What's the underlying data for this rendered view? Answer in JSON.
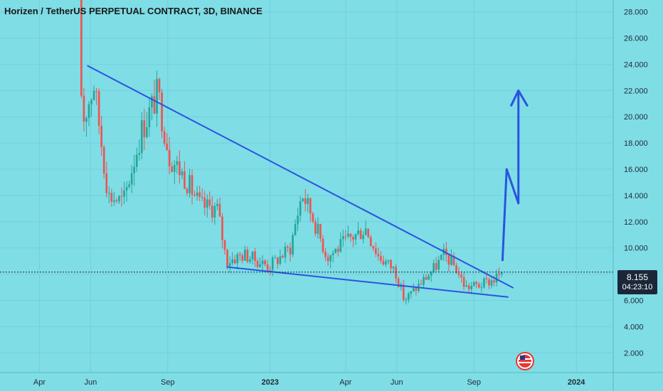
{
  "header": {
    "title": "Horizen / TetherUS PERPETUAL CONTRACT, 3D, BINANCE"
  },
  "price_tag": {
    "price": "8.155",
    "countdown": "04:23:10"
  },
  "chart_data": {
    "type": "candlestick",
    "ylim": [
      0.5,
      28.9
    ],
    "y_ticks": [
      "28.000",
      "26.000",
      "24.000",
      "22.000",
      "20.000",
      "18.000",
      "16.000",
      "14.000",
      "12.000",
      "10.000",
      "8.000",
      "6.000",
      "4.000",
      "2.000"
    ],
    "y_tick_values": [
      28,
      26,
      24,
      22,
      20,
      18,
      16,
      14,
      12,
      10,
      8,
      6,
      4,
      2
    ],
    "x_ticks": [
      {
        "label": "Apr",
        "date": "2022-04-01",
        "bold": false
      },
      {
        "label": "Jun",
        "date": "2022-06-01",
        "bold": false
      },
      {
        "label": "Sep",
        "date": "2022-09-01",
        "bold": false
      },
      {
        "label": "2023",
        "date": "2023-01-01",
        "bold": true
      },
      {
        "label": "Apr",
        "date": "2023-04-01",
        "bold": false
      },
      {
        "label": "Jun",
        "date": "2023-06-01",
        "bold": false
      },
      {
        "label": "Sep",
        "date": "2023-09-01",
        "bold": false
      },
      {
        "label": "2024",
        "date": "2024-01-01",
        "bold": true
      }
    ],
    "x_date_range": [
      "2022-02-13",
      "2024-02-14"
    ],
    "current_price": 8.155,
    "up_color": "#26a69a",
    "down_color": "#ef5350",
    "trendline_color": "#2a54e0",
    "anchors": [
      {
        "date": "2022-05-18",
        "close": 29.0
      },
      {
        "date": "2022-05-22",
        "close": 19.5
      },
      {
        "date": "2022-06-05",
        "close": 22.5
      },
      {
        "date": "2022-06-22",
        "close": 14.0
      },
      {
        "date": "2022-07-10",
        "close": 13.5
      },
      {
        "date": "2022-08-01",
        "close": 19.0
      },
      {
        "date": "2022-08-20",
        "close": 21.8
      },
      {
        "date": "2022-09-03",
        "close": 17.0
      },
      {
        "date": "2022-09-20",
        "close": 15.5
      },
      {
        "date": "2022-10-10",
        "close": 13.2
      },
      {
        "date": "2022-10-30",
        "close": 13.0
      },
      {
        "date": "2022-11-10",
        "close": 9.0
      },
      {
        "date": "2022-12-01",
        "close": 9.5
      },
      {
        "date": "2022-12-31",
        "close": 8.6
      },
      {
        "date": "2023-01-25",
        "close": 10.0
      },
      {
        "date": "2023-02-08",
        "close": 14.2
      },
      {
        "date": "2023-02-20",
        "close": 12.5
      },
      {
        "date": "2023-03-10",
        "close": 9.3
      },
      {
        "date": "2023-04-01",
        "close": 10.5
      },
      {
        "date": "2023-04-25",
        "close": 11.5
      },
      {
        "date": "2023-05-10",
        "close": 9.4
      },
      {
        "date": "2023-05-30",
        "close": 8.3
      },
      {
        "date": "2023-06-10",
        "close": 6.0
      },
      {
        "date": "2023-06-28",
        "close": 7.2
      },
      {
        "date": "2023-07-15",
        "close": 8.4
      },
      {
        "date": "2023-07-28",
        "close": 9.5
      },
      {
        "date": "2023-08-10",
        "close": 8.5
      },
      {
        "date": "2023-08-22",
        "close": 7.0
      },
      {
        "date": "2023-09-10",
        "close": 7.2
      },
      {
        "date": "2023-09-25",
        "close": 7.6
      },
      {
        "date": "2023-10-05",
        "close": 8.155
      }
    ],
    "trendlines": [
      {
        "name": "upper",
        "from": {
          "date": "2022-05-28",
          "value": 23.9
        },
        "to": {
          "date": "2023-10-18",
          "value": 6.95
        }
      },
      {
        "name": "lower",
        "from": {
          "date": "2022-11-10",
          "value": 8.55
        },
        "to": {
          "date": "2023-10-12",
          "value": 6.25
        }
      }
    ],
    "projection_path": [
      {
        "date": "2023-10-05",
        "value": 9.0
      },
      {
        "date": "2023-10-10",
        "value": 16.0
      },
      {
        "date": "2023-10-24",
        "value": 13.4
      },
      {
        "date": "2023-10-24",
        "value": 22.0
      }
    ],
    "projection_arrowhead": {
      "tip": {
        "date": "2023-10-24",
        "value": 22.0
      },
      "left": {
        "date": "2023-10-15",
        "value": 20.8
      },
      "right": {
        "date": "2023-11-04",
        "value": 20.8
      }
    }
  }
}
